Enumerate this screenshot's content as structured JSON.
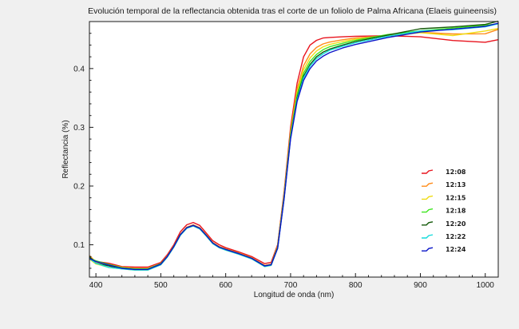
{
  "chart_data": {
    "type": "line",
    "title": "Evolución temporal de la reflectancia obtenida tras el corte de un foliolo de Palma Africana (Elaeis guineensis)",
    "xlabel": "Longitud de onda (nm)",
    "ylabel": "Reflectancia (%)",
    "xlim": [
      390,
      1020
    ],
    "ylim": [
      0.045,
      0.48
    ],
    "x_ticks": [
      400,
      500,
      600,
      700,
      800,
      900,
      1000
    ],
    "x_tick_labels": [
      "400",
      "500",
      "600",
      "700",
      "800",
      "900",
      "1000"
    ],
    "y_ticks": [
      0.1,
      0.2,
      0.3,
      0.4
    ],
    "y_tick_labels": [
      "0.1",
      "0.2",
      "0.3",
      "0.4"
    ],
    "grid": false,
    "legend_position": "right",
    "x": [
      390,
      400,
      420,
      440,
      460,
      480,
      500,
      510,
      520,
      530,
      540,
      550,
      560,
      570,
      580,
      590,
      600,
      620,
      640,
      660,
      670,
      680,
      690,
      700,
      710,
      720,
      730,
      740,
      750,
      760,
      780,
      800,
      850,
      900,
      950,
      1000,
      1020
    ],
    "series": [
      {
        "name": "12:08",
        "color": "#e8141e",
        "values": [
          0.077,
          0.07,
          0.067,
          0.063,
          0.062,
          0.062,
          0.07,
          0.083,
          0.1,
          0.122,
          0.134,
          0.138,
          0.133,
          0.12,
          0.107,
          0.1,
          0.095,
          0.088,
          0.08,
          0.068,
          0.07,
          0.1,
          0.19,
          0.3,
          0.375,
          0.42,
          0.44,
          0.448,
          0.452,
          0.453,
          0.454,
          0.455,
          0.456,
          0.455,
          0.447,
          0.443,
          0.448
        ]
      },
      {
        "name": "12:13",
        "color": "#ff8c1a",
        "values": [
          0.08,
          0.072,
          0.066,
          0.062,
          0.06,
          0.06,
          0.068,
          0.081,
          0.098,
          0.118,
          0.13,
          0.134,
          0.129,
          0.117,
          0.104,
          0.097,
          0.093,
          0.086,
          0.078,
          0.065,
          0.067,
          0.098,
          0.186,
          0.293,
          0.365,
          0.405,
          0.425,
          0.436,
          0.442,
          0.445,
          0.449,
          0.452,
          0.456,
          0.46,
          0.458,
          0.46,
          0.466
        ]
      },
      {
        "name": "12:15",
        "color": "#f0dc14",
        "values": [
          0.076,
          0.068,
          0.063,
          0.059,
          0.057,
          0.057,
          0.066,
          0.079,
          0.096,
          0.116,
          0.128,
          0.132,
          0.127,
          0.115,
          0.102,
          0.095,
          0.091,
          0.084,
          0.076,
          0.063,
          0.065,
          0.096,
          0.183,
          0.29,
          0.36,
          0.398,
          0.418,
          0.43,
          0.437,
          0.441,
          0.446,
          0.45,
          0.456,
          0.462,
          0.458,
          0.465,
          0.47
        ]
      },
      {
        "name": "12:18",
        "color": "#3ce61e",
        "values": [
          0.079,
          0.071,
          0.065,
          0.061,
          0.059,
          0.059,
          0.068,
          0.08,
          0.097,
          0.117,
          0.129,
          0.133,
          0.128,
          0.116,
          0.103,
          0.096,
          0.092,
          0.085,
          0.077,
          0.064,
          0.066,
          0.096,
          0.182,
          0.287,
          0.355,
          0.392,
          0.412,
          0.424,
          0.432,
          0.437,
          0.443,
          0.448,
          0.458,
          0.465,
          0.468,
          0.472,
          0.475
        ]
      },
      {
        "name": "12:20",
        "color": "#145a0a",
        "values": [
          0.078,
          0.07,
          0.064,
          0.06,
          0.058,
          0.058,
          0.067,
          0.08,
          0.097,
          0.117,
          0.129,
          0.133,
          0.128,
          0.116,
          0.103,
          0.096,
          0.092,
          0.085,
          0.077,
          0.064,
          0.066,
          0.095,
          0.18,
          0.284,
          0.35,
          0.387,
          0.407,
          0.42,
          0.428,
          0.433,
          0.44,
          0.446,
          0.457,
          0.466,
          0.47,
          0.476,
          0.48
        ]
      },
      {
        "name": "12:22",
        "color": "#14dcdc",
        "values": [
          0.077,
          0.069,
          0.063,
          0.059,
          0.057,
          0.057,
          0.066,
          0.079,
          0.096,
          0.116,
          0.128,
          0.132,
          0.127,
          0.115,
          0.102,
          0.095,
          0.091,
          0.084,
          0.076,
          0.063,
          0.065,
          0.094,
          0.179,
          0.282,
          0.347,
          0.384,
          0.404,
          0.417,
          0.425,
          0.431,
          0.438,
          0.444,
          0.455,
          0.465,
          0.468,
          0.472,
          0.478
        ]
      },
      {
        "name": "12:24",
        "color": "#0a14c8",
        "values": [
          0.078,
          0.07,
          0.064,
          0.06,
          0.058,
          0.058,
          0.067,
          0.08,
          0.097,
          0.117,
          0.129,
          0.133,
          0.128,
          0.116,
          0.103,
          0.096,
          0.092,
          0.085,
          0.077,
          0.064,
          0.066,
          0.094,
          0.178,
          0.28,
          0.344,
          0.38,
          0.4,
          0.413,
          0.421,
          0.427,
          0.435,
          0.441,
          0.453,
          0.463,
          0.466,
          0.47,
          0.476
        ]
      }
    ]
  }
}
